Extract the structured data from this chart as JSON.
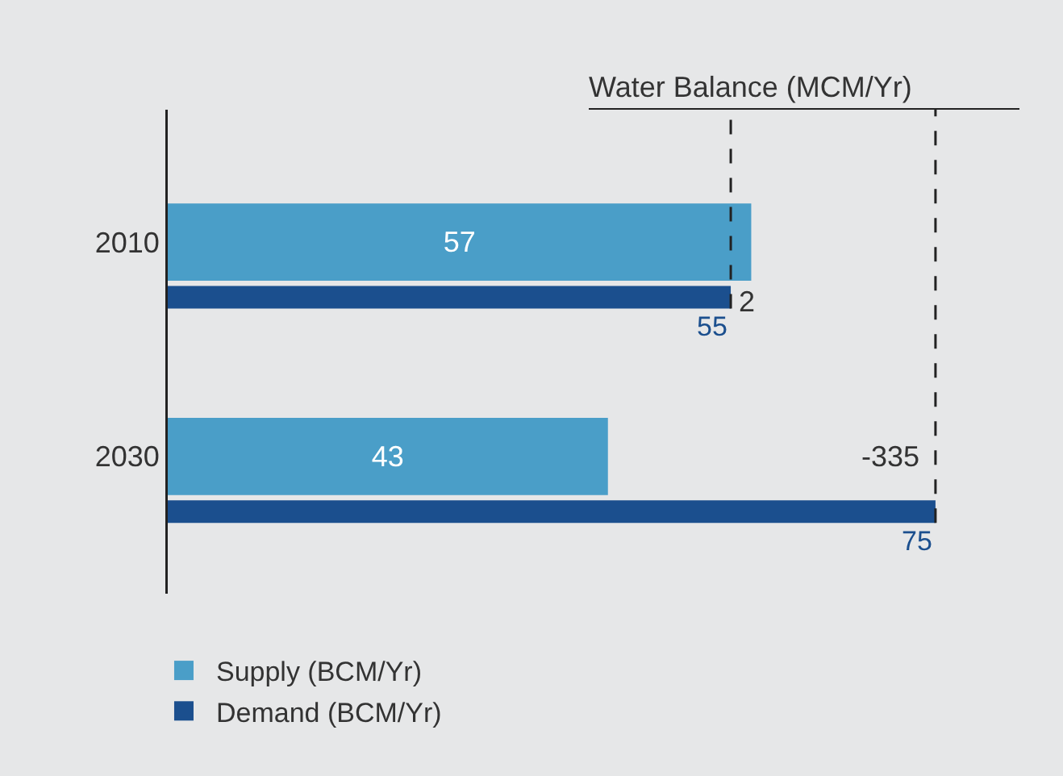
{
  "chart_data": {
    "type": "bar",
    "orientation": "horizontal",
    "categories": [
      "2010",
      "2030"
    ],
    "series": [
      {
        "name": "Supply (BCM/Yr)",
        "color": "#4a9ec8",
        "values": [
          57,
          43
        ]
      },
      {
        "name": "Demand (BCM/Yr)",
        "color": "#1b4f8e",
        "values": [
          55,
          75
        ]
      }
    ],
    "data_labels": true,
    "grid": false,
    "legend": "bottom left",
    "tick_labels": "y",
    "annotations": [
      "Water Balance (MCM/Yr)",
      {
        "text": "2",
        "x": 55,
        "y": "2010"
      },
      {
        "text": "-335",
        "x": 75,
        "y": "2030"
      }
    ],
    "ref_lines": [
      {
        "axis": "x",
        "value": 55,
        "line_style": "dashed",
        "color": "#222222"
      },
      {
        "axis": "x",
        "value": 75,
        "line_style": "dashed",
        "color": "#222222"
      }
    ]
  }
}
